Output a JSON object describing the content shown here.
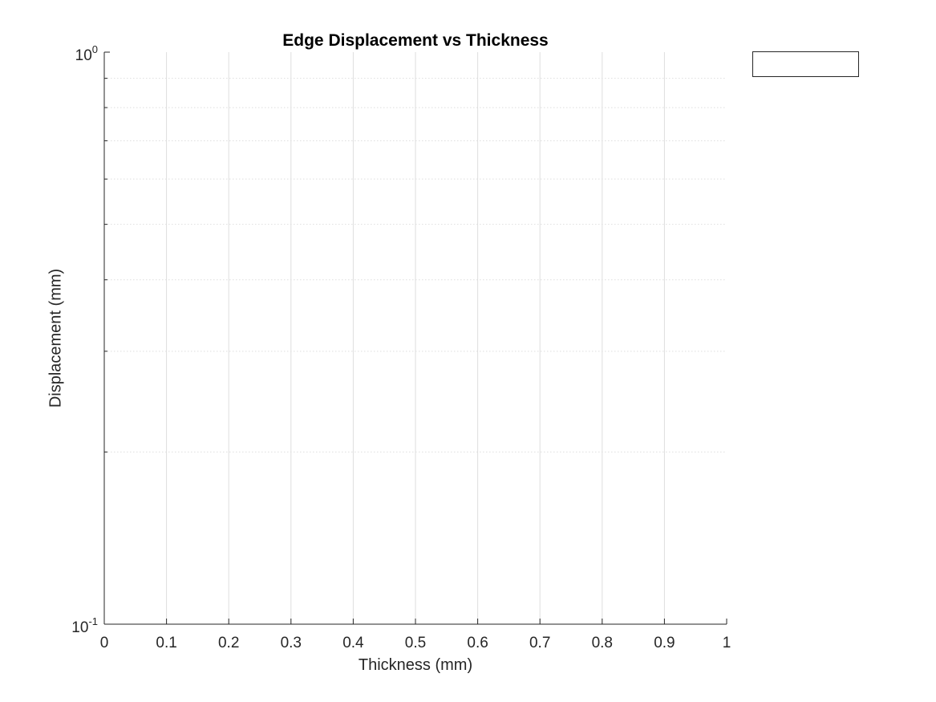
{
  "chart_data": {
    "type": "line",
    "title": "Edge Displacement vs Thickness",
    "xlabel": "Thickness (mm)",
    "ylabel": "Displacement (mm)",
    "xlim": [
      0,
      1
    ],
    "ylim": [
      0.1,
      1
    ],
    "yscale": "log",
    "x_ticks": [
      0,
      0.1,
      0.2,
      0.3,
      0.4,
      0.5,
      0.6,
      0.7,
      0.8,
      0.9,
      1
    ],
    "x_tick_labels": [
      "0",
      "0.1",
      "0.2",
      "0.3",
      "0.4",
      "0.5",
      "0.6",
      "0.7",
      "0.8",
      "0.9",
      "1"
    ],
    "y_ticks": [
      0.1,
      1
    ],
    "y_tick_labels": [
      {
        "base": "10",
        "exp": "-1"
      },
      {
        "base": "10",
        "exp": "0"
      }
    ],
    "y_minor_ticks": [
      0.2,
      0.3,
      0.4,
      0.5,
      0.6,
      0.7,
      0.8,
      0.9
    ],
    "grid": true,
    "legend": "top-right, outside axes",
    "series": [],
    "colors": {
      "axis": "#262626",
      "grid": "#dedede",
      "background": "#ffffff"
    }
  }
}
